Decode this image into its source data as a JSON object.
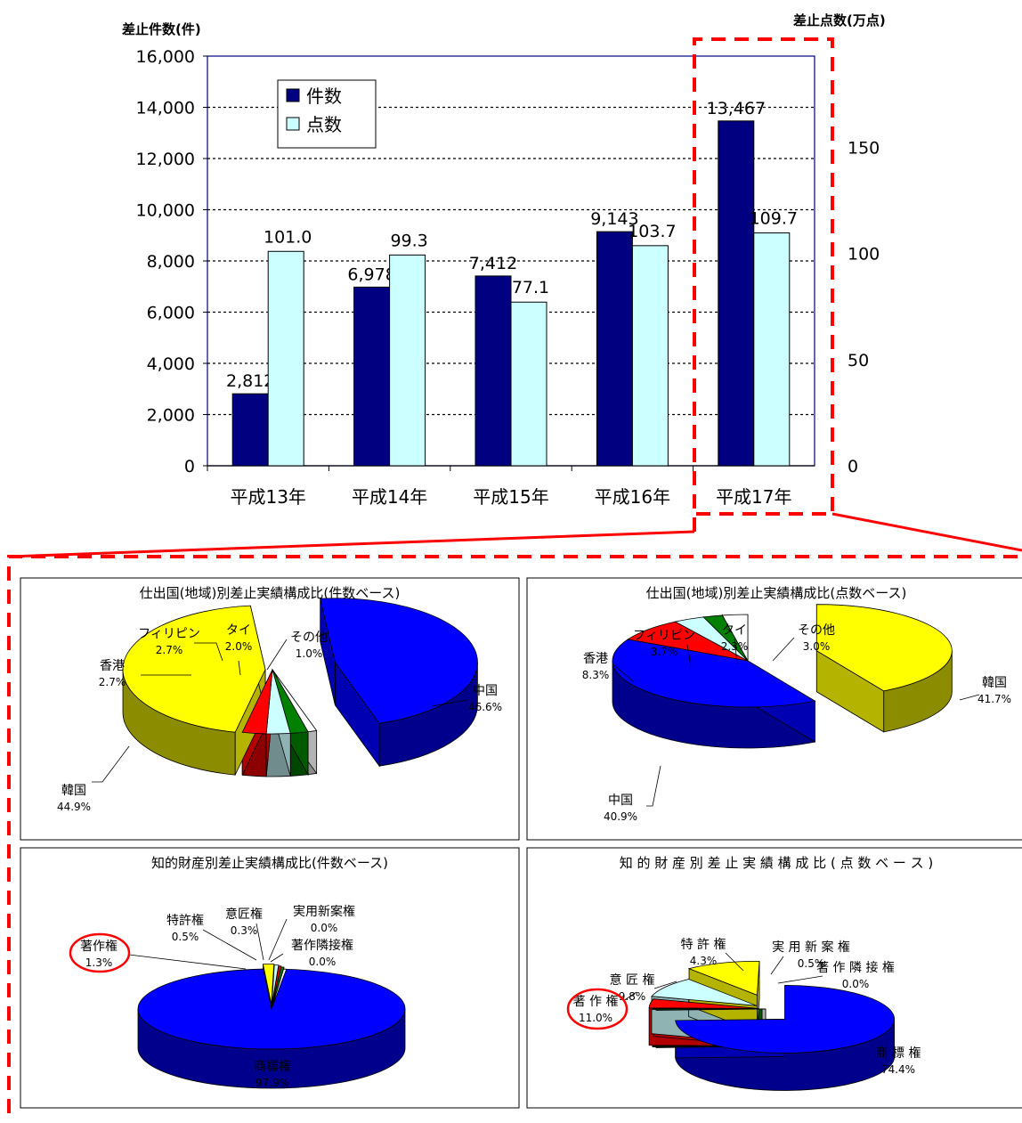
{
  "chart_data": [
    {
      "type": "bar",
      "categories": [
        "平成13年",
        "平成14年",
        "平成15年",
        "平成16年",
        "平成17年"
      ],
      "ylabel": "差止件数(件)",
      "y2label": "差止点数(万点)",
      "ylim": [
        0,
        16000
      ],
      "y2lim": [
        0,
        193
      ],
      "yticks": [
        "0",
        "2,000",
        "4,000",
        "6,000",
        "8,000",
        "10,000",
        "12,000",
        "14,000",
        "16,000"
      ],
      "y2ticks": [
        "0",
        "50",
        "100",
        "150"
      ],
      "grid": true,
      "legend_position": "top-left",
      "series": [
        {
          "name": "件数",
          "axis": "left",
          "color": "#000080",
          "values": [
            2812,
            6978,
            7412,
            9143,
            13467
          ],
          "labels": [
            "2,812",
            "6,978",
            "7,412",
            "9,143",
            "13,467"
          ]
        },
        {
          "name": "点数",
          "axis": "right",
          "color": "#ccffff",
          "values": [
            101.0,
            99.3,
            77.1,
            103.7,
            109.7
          ],
          "labels": [
            "101.0",
            "99.3",
            "77.1",
            "103.7",
            "109.7"
          ]
        }
      ],
      "highlight_category": "平成17年"
    },
    {
      "type": "pie",
      "title": "仕出国(地域)別差止実績構成比(件数ベース)",
      "slices": [
        {
          "label": "中国",
          "value": 46.6,
          "text": "46.6%",
          "color": "#0000ff"
        },
        {
          "label": "韓国",
          "value": 44.9,
          "text": "44.9%",
          "color": "#ffff00"
        },
        {
          "label": "香港",
          "value": 2.7,
          "text": "2.7%",
          "color": "#ff0000"
        },
        {
          "label": "フィリピン",
          "value": 2.7,
          "text": "2.7%",
          "color": "#ccffff"
        },
        {
          "label": "タイ",
          "value": 2.0,
          "text": "2.0%",
          "color": "#008000"
        },
        {
          "label": "その他",
          "value": 1.0,
          "text": "1.0%",
          "color": "#ffffff"
        }
      ]
    },
    {
      "type": "pie",
      "title": "仕出国(地域)別差止実績構成比(点数ベース)",
      "slices": [
        {
          "label": "韓国",
          "value": 41.7,
          "text": "41.7%",
          "color": "#ffff00"
        },
        {
          "label": "中国",
          "value": 40.9,
          "text": "40.9%",
          "color": "#0000ff"
        },
        {
          "label": "香港",
          "value": 8.3,
          "text": "8.3%",
          "color": "#ff0000"
        },
        {
          "label": "フィリピン",
          "value": 3.7,
          "text": "3.7%",
          "color": "#ccffff"
        },
        {
          "label": "タイ",
          "value": 2.3,
          "text": "2.3%",
          "color": "#008000"
        },
        {
          "label": "その他",
          "value": 3.0,
          "text": "3.0%",
          "color": "#ffffff"
        }
      ]
    },
    {
      "type": "pie",
      "title": "知的財産別差止実績構成比(件数ベース)",
      "slices": [
        {
          "label": "商標権",
          "value": 97.9,
          "text": "97.9%",
          "color": "#0000ff"
        },
        {
          "label": "著作権",
          "value": 1.3,
          "text": "1.3%",
          "color": "#ffff00",
          "circled": true
        },
        {
          "label": "特許権",
          "value": 0.5,
          "text": "0.5%",
          "color": "#ccffff"
        },
        {
          "label": "意匠権",
          "value": 0.3,
          "text": "0.3%",
          "color": "#ff0000"
        },
        {
          "label": "実用新案権",
          "value": 0.0,
          "text": "0.0%",
          "color": "#008000"
        },
        {
          "label": "著作隣接権",
          "value": 0.0,
          "text": "0.0%",
          "color": "#ffffff"
        }
      ]
    },
    {
      "type": "pie",
      "title": "知 的 財 産 別 差 止 実 績 構 成 比 ( 点 数 ベ ー ス )",
      "slices": [
        {
          "label": "商 標 権",
          "value": 74.4,
          "text": "74.4%",
          "color": "#0000ff"
        },
        {
          "label": "著 作 権",
          "value": 11.0,
          "text": "11.0%",
          "color": "#ffff00",
          "circled": true
        },
        {
          "label": "意 匠 権",
          "value": 9.8,
          "text": "9.8%",
          "color": "#ccffff"
        },
        {
          "label": "特 許 権",
          "value": 4.3,
          "text": "4.3%",
          "color": "#ff0000"
        },
        {
          "label": "実 用 新 案 権",
          "value": 0.5,
          "text": "0.5%",
          "color": "#008000"
        },
        {
          "label": "著 作 隣 接 権",
          "value": 0.0,
          "text": "0.0%",
          "color": "#ffffff"
        }
      ]
    }
  ]
}
